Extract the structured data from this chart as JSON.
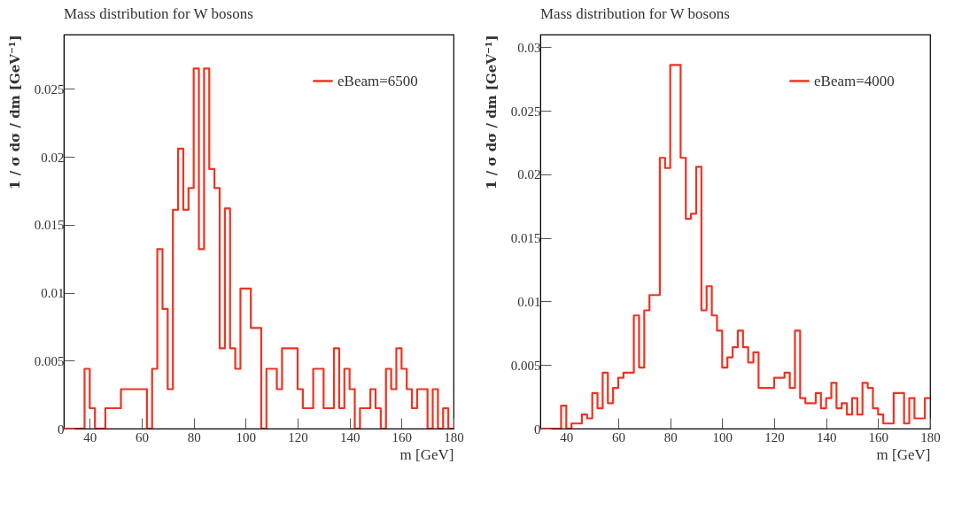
{
  "chart_data": [
    {
      "type": "histogram",
      "title": "Mass distribution for W bosons",
      "xlabel": "m [GeV]",
      "ylabel": "1 / σ dσ / dm [GeV⁻¹]",
      "bins": [
        30,
        38,
        40,
        42,
        46,
        52,
        62,
        64,
        66,
        68,
        70,
        72,
        74,
        76,
        78,
        80,
        82,
        84,
        86,
        88,
        90,
        92,
        94,
        96,
        98,
        102,
        106,
        108,
        112,
        114,
        120,
        122,
        126,
        130,
        134,
        136,
        138,
        140,
        142,
        144,
        148,
        150,
        152,
        154,
        156,
        158,
        160,
        162,
        164,
        166,
        170,
        172,
        174,
        176,
        178,
        180
      ],
      "series": [
        {
          "name": "eBeam=6500",
          "color": "#ee3322",
          "values": [
            0,
            0.0044,
            0.0015,
            0,
            0.0015,
            0.0029,
            0,
            0.0044,
            0.0132,
            0.0088,
            0.0029,
            0.0161,
            0.0206,
            0.0161,
            0.0177,
            0.0265,
            0.0132,
            0.0265,
            0.0191,
            0.0177,
            0.0059,
            0.0162,
            0.0059,
            0.0044,
            0.0103,
            0.0074,
            0,
            0.0044,
            0.0029,
            0.0059,
            0.0029,
            0.0015,
            0.0044,
            0.0015,
            0.0059,
            0.0015,
            0.0044,
            0.0029,
            0,
            0.0015,
            0.0029,
            0.0015,
            0,
            0.0044,
            0.0029,
            0.0059,
            0.0044,
            0.0029,
            0.0015,
            0.0029,
            0,
            0.0029,
            0,
            0.0015,
            0
          ]
        }
      ],
      "xlim": [
        30,
        180
      ],
      "xticks": [
        40,
        60,
        80,
        100,
        120,
        140,
        160,
        180
      ],
      "ylim": [
        0,
        0.029
      ],
      "yticks": [
        0,
        0.005,
        0.01,
        0.015,
        0.02,
        0.025
      ],
      "legend": "top right",
      "grid": false
    },
    {
      "type": "histogram",
      "title": "Mass distribution for W bosons",
      "xlabel": "m [GeV]",
      "ylabel": "1 / σ dσ / dm [GeV⁻¹]",
      "bins": [
        30,
        38,
        40,
        42,
        46,
        48,
        50,
        52,
        54,
        56,
        58,
        60,
        62,
        66,
        68,
        70,
        72,
        76,
        78,
        80,
        84,
        86,
        88,
        90,
        92,
        94,
        96,
        98,
        100,
        102,
        104,
        106,
        108,
        110,
        112,
        114,
        120,
        124,
        126,
        128,
        130,
        132,
        136,
        138,
        140,
        142,
        144,
        146,
        148,
        150,
        152,
        154,
        156,
        158,
        160,
        162,
        166,
        170,
        172,
        174,
        178,
        180
      ],
      "series": [
        {
          "name": "eBeam=4000",
          "color": "#ee3322",
          "values": [
            0,
            0.0018,
            0,
            0.0004,
            0.0011,
            0.0008,
            0.0028,
            0.0016,
            0.0044,
            0.002,
            0.0032,
            0.004,
            0.0044,
            0.0089,
            0.0048,
            0.0093,
            0.0105,
            0.0213,
            0.0205,
            0.0286,
            0.0213,
            0.0165,
            0.0169,
            0.0206,
            0.0093,
            0.0112,
            0.0089,
            0.0077,
            0.0048,
            0.0056,
            0.0064,
            0.0077,
            0.0064,
            0.0052,
            0.006,
            0.0032,
            0.004,
            0.0044,
            0.0032,
            0.0077,
            0.0024,
            0.002,
            0.0028,
            0.0016,
            0.0024,
            0.0036,
            0.0016,
            0.002,
            0.0011,
            0.0024,
            0.0011,
            0.0036,
            0.0032,
            0.0016,
            0.0011,
            0.0004,
            0.0028,
            0.0004,
            0.0024,
            0.0008,
            0.0024
          ]
        }
      ],
      "xlim": [
        30,
        180
      ],
      "xticks": [
        40,
        60,
        80,
        100,
        120,
        140,
        160,
        180
      ],
      "ylim": [
        0,
        0.031
      ],
      "yticks": [
        0,
        0.005,
        0.01,
        0.015,
        0.02,
        0.025,
        0.03
      ],
      "legend": "top right",
      "grid": false
    }
  ]
}
